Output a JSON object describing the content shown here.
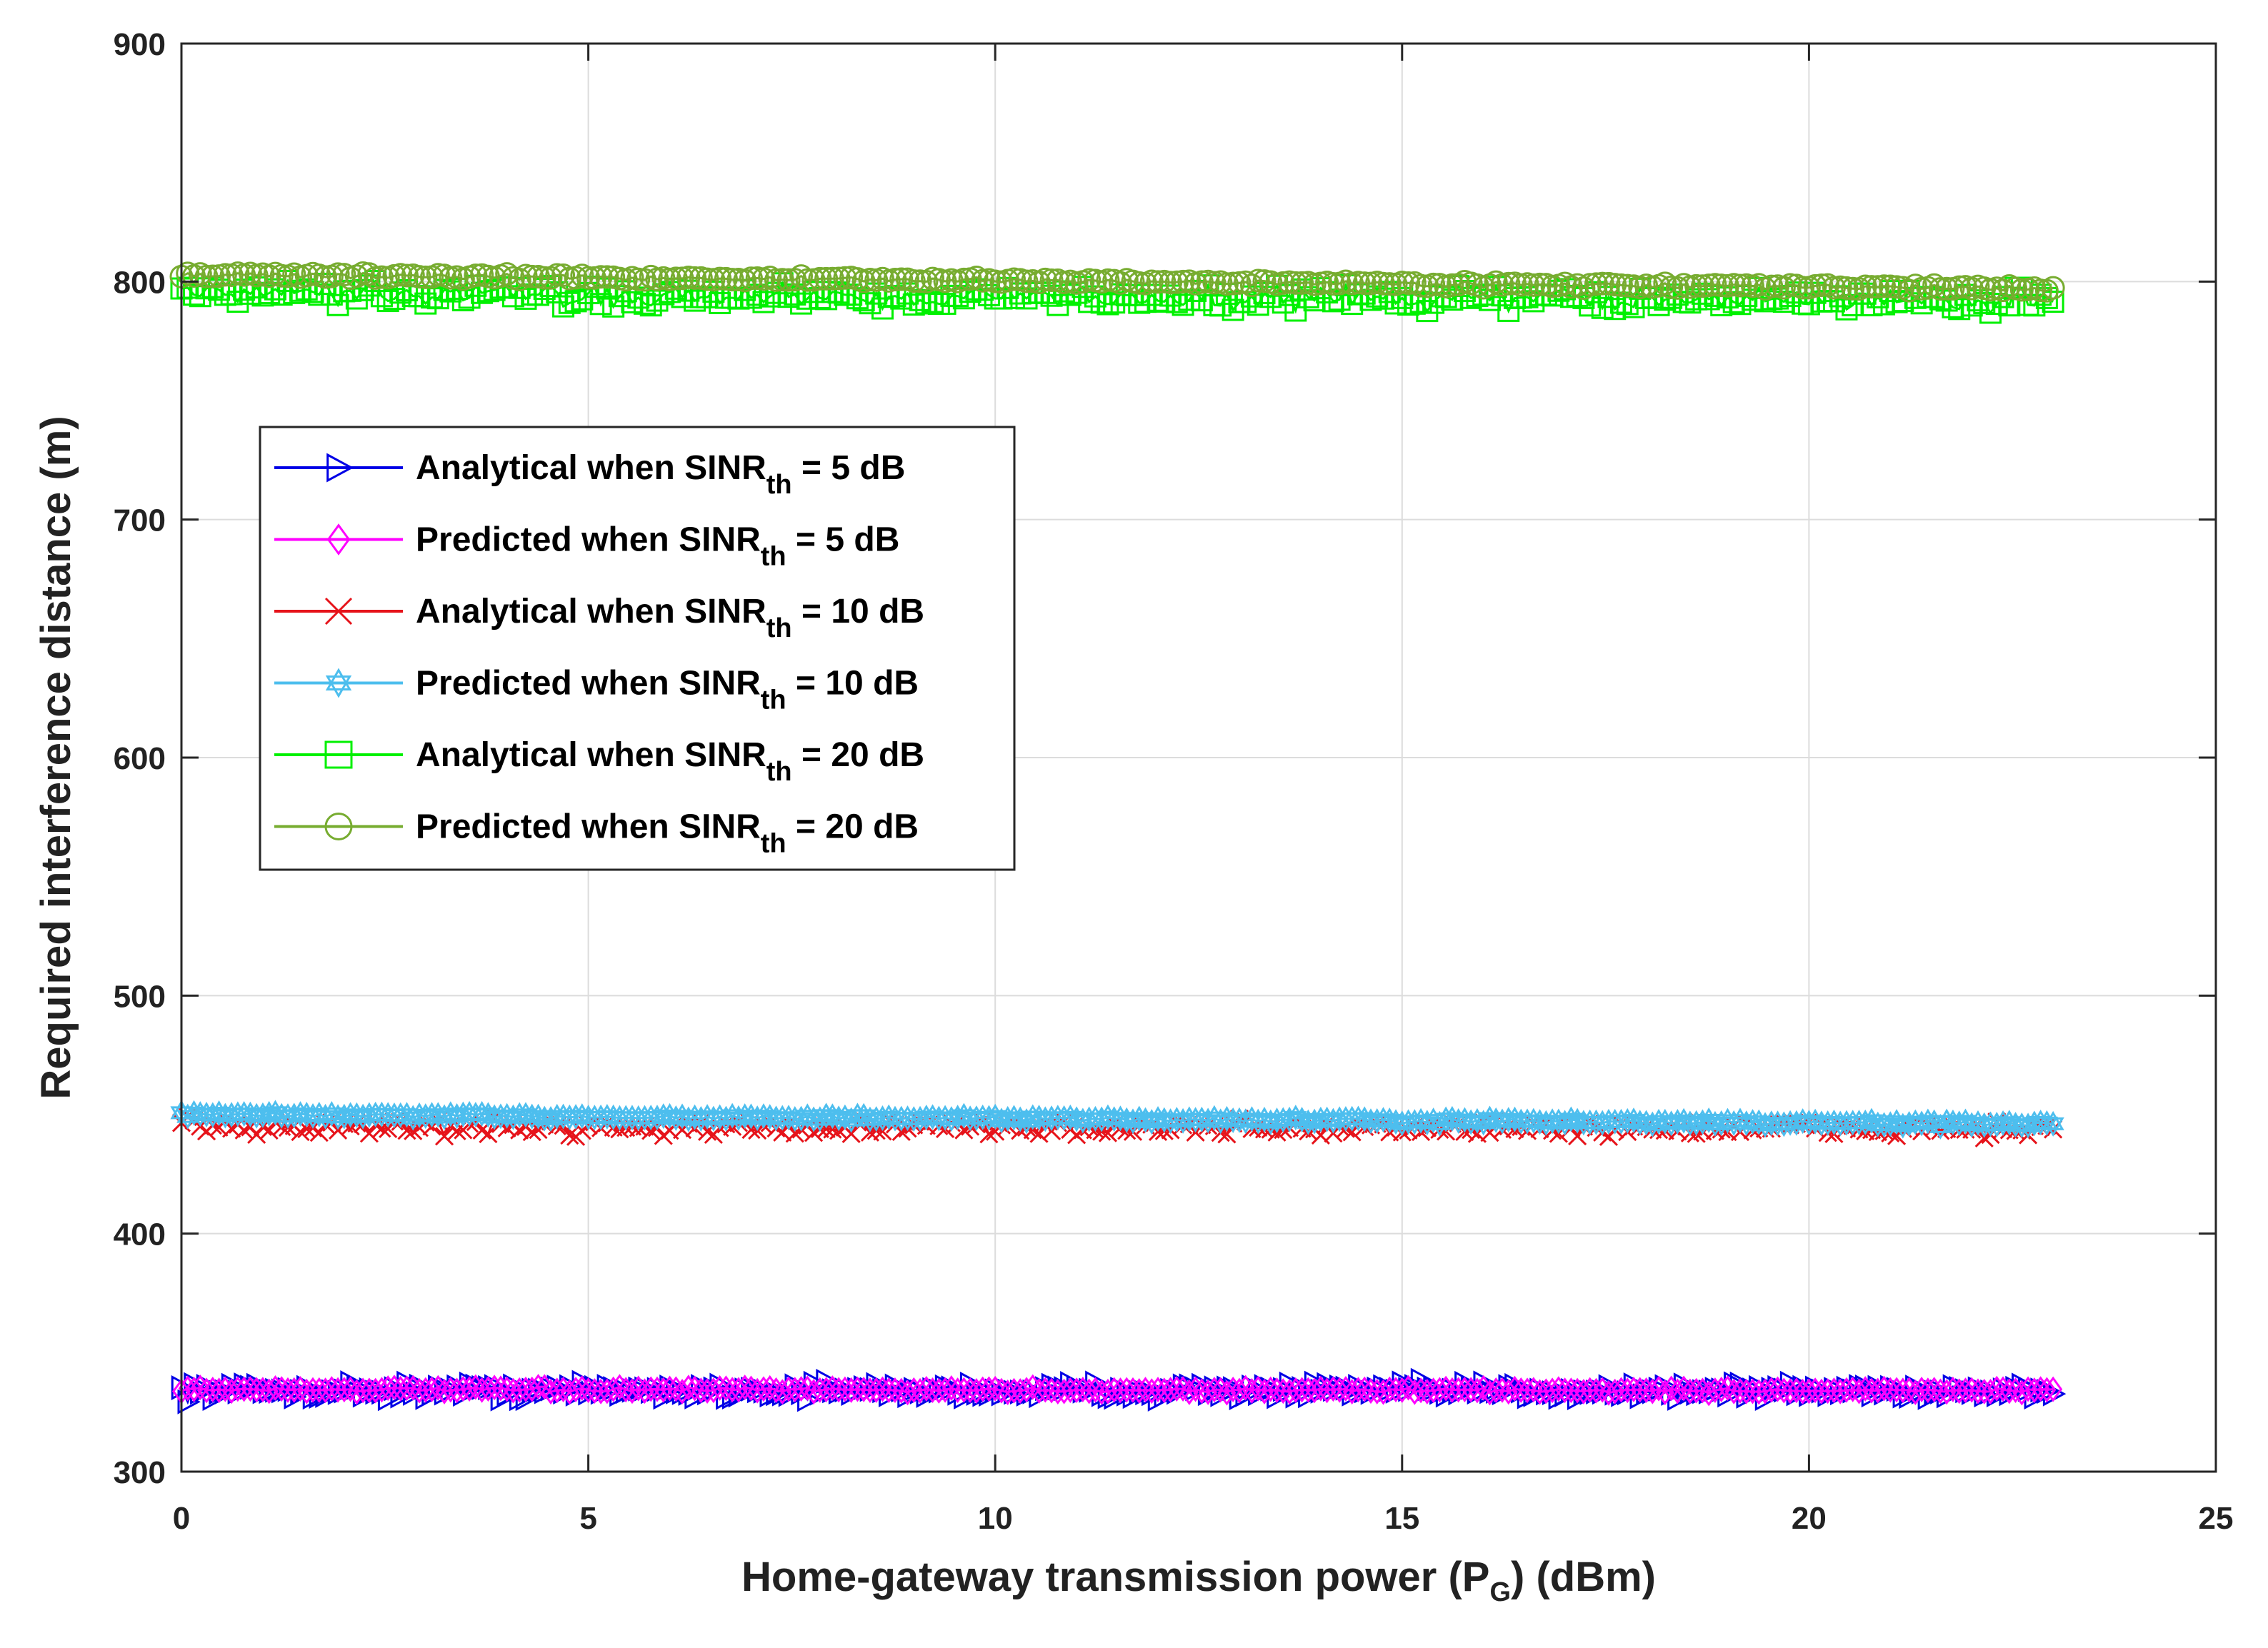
{
  "chart_data": {
    "type": "line",
    "title": "",
    "xlabel": "Home-gateway transmission power (P",
    "xlabel_sub": "G",
    "xlabel_end": ") (dBm)",
    "ylabel": "Required interference distance  (m)",
    "xlim": [
      0,
      25
    ],
    "ylim": [
      300,
      900
    ],
    "xticks": [
      0,
      5,
      10,
      15,
      20,
      25
    ],
    "yticks": [
      300,
      400,
      500,
      600,
      700,
      800,
      900
    ],
    "grid": true,
    "legend_position": "upper-left",
    "x_range": [
      0,
      23
    ],
    "num_points": 300,
    "series": [
      {
        "name": "Analytical when SINR_th = 5 dB",
        "label_pre": "Analytical when SINR",
        "label_sub": "th",
        "label_post": " = 5 dB",
        "color": "#0000E6",
        "marker": "triangle-right",
        "x_start": 0,
        "x_end": 23,
        "center_start": 334,
        "center_end": 334,
        "noise": 5,
        "marker_size": 15
      },
      {
        "name": "Predicted when SINR_th = 5 dB",
        "label_pre": "Predicted when SINR",
        "label_sub": "th",
        "label_post": " = 5 dB",
        "color": "#FF00FF",
        "marker": "diamond",
        "x_start": 0,
        "x_end": 23,
        "center_start": 334.5,
        "center_end": 334,
        "noise": 1.5,
        "marker_size": 14
      },
      {
        "name": "Analytical when SINR_th = 10 dB",
        "label_pre": "Analytical when SINR",
        "label_sub": "th",
        "label_post": " = 10 dB",
        "color": "#E6131A",
        "marker": "x",
        "x_start": 0,
        "x_end": 23,
        "center_start": 445,
        "center_end": 444,
        "noise": 5,
        "marker_size": 12
      },
      {
        "name": "Predicted when SINR_th = 10 dB",
        "label_pre": "Predicted when SINR",
        "label_sub": "th",
        "label_post": " = 10 dB",
        "color": "#4DBEEE",
        "marker": "hexagram",
        "x_start": 0,
        "x_end": 23,
        "center_start": 450,
        "center_end": 446,
        "noise": 1.5,
        "marker_size": 15
      },
      {
        "name": "Analytical when SINR_th = 20 dB",
        "label_pre": "Analytical when SINR",
        "label_sub": "th",
        "label_post": " = 20 dB",
        "color": "#00F000",
        "marker": "square",
        "x_start": 0,
        "x_end": 23,
        "center_start": 795,
        "center_end": 792,
        "noise": 7,
        "marker_size": 14
      },
      {
        "name": "Predicted when SINR_th = 20 dB",
        "label_pre": "Predicted when SINR",
        "label_sub": "th",
        "label_post": " = 20 dB",
        "color": "#77AC30",
        "marker": "circle",
        "x_start": 0,
        "x_end": 23,
        "center_start": 803,
        "center_end": 797,
        "noise": 1.5,
        "marker_size": 15
      }
    ]
  }
}
